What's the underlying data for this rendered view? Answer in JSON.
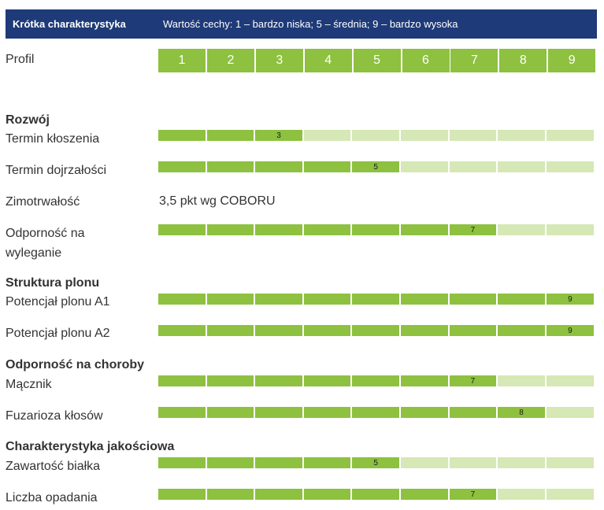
{
  "header": {
    "title": "Krótka charakterystyka",
    "scale_note": "Wartość cechy: 1 – bardzo niska; 5 – średnia; 9 – bardzo wysoka"
  },
  "profile": {
    "label": "Profil",
    "scale": [
      "1",
      "2",
      "3",
      "4",
      "5",
      "6",
      "7",
      "8",
      "9"
    ]
  },
  "sections": [
    {
      "heading": "Rozwój",
      "traits": [
        {
          "label": "Termin kłoszenia",
          "value": 3
        },
        {
          "label": "Termin dojrzałości",
          "value": 5
        },
        {
          "label": "Zimotrwałość",
          "text": "3,5 pkt wg COBORU"
        },
        {
          "label": "Odporność na wyleganie",
          "value": 7
        }
      ]
    },
    {
      "heading": "Struktura plonu",
      "traits": [
        {
          "label": "Potencjał plonu A1",
          "value": 9
        },
        {
          "label": "Potencjał plonu A2",
          "value": 9
        }
      ]
    },
    {
      "heading": "Odporność na choroby",
      "traits": [
        {
          "label": "Mącznik",
          "value": 7
        },
        {
          "label": "Fuzarioza kłosów",
          "value": 8
        }
      ]
    },
    {
      "heading": "Charakterystyka jakościowa",
      "traits": [
        {
          "label": "Zawartość białka",
          "value": 5
        },
        {
          "label": "Liczba opadania",
          "value": 7
        }
      ]
    }
  ],
  "colors": {
    "header_bg": "#1e3a78",
    "filled": "#8dc13f",
    "empty": "#d5e8b5"
  }
}
